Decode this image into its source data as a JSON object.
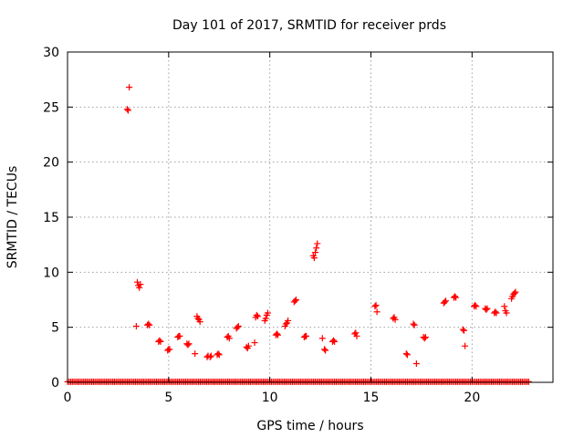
{
  "chart_data": {
    "type": "scatter",
    "title": "Day 101 of 2017, SRMTID for receiver prds",
    "xlabel": "GPS time / hours",
    "ylabel": "SRMTID / TECUs",
    "xlim": [
      0,
      24
    ],
    "ylim": [
      0,
      30
    ],
    "xticks": [
      0,
      5,
      10,
      15,
      20
    ],
    "yticks": [
      0,
      5,
      10,
      15,
      20,
      25,
      30
    ],
    "grid": true,
    "marker": "plus",
    "color": "#ff0000",
    "baseline": {
      "y": 0.05,
      "x_start": 0.0,
      "x_end": 22.8,
      "step": 0.08
    },
    "points": [
      [
        2.95,
        24.8
      ],
      [
        3.0,
        24.7
      ],
      [
        3.05,
        26.8
      ],
      [
        3.4,
        5.1
      ],
      [
        3.45,
        9.1
      ],
      [
        3.5,
        8.8
      ],
      [
        3.55,
        8.6
      ],
      [
        3.6,
        8.9
      ],
      [
        3.95,
        5.2
      ],
      [
        4.0,
        5.3
      ],
      [
        4.05,
        5.2
      ],
      [
        4.5,
        3.7
      ],
      [
        4.55,
        3.8
      ],
      [
        4.6,
        3.7
      ],
      [
        4.95,
        2.9
      ],
      [
        5.0,
        3.0
      ],
      [
        5.05,
        3.0
      ],
      [
        5.45,
        4.1
      ],
      [
        5.5,
        4.2
      ],
      [
        5.55,
        4.2
      ],
      [
        5.9,
        3.5
      ],
      [
        5.95,
        3.4
      ],
      [
        6.0,
        3.5
      ],
      [
        6.3,
        2.6
      ],
      [
        6.4,
        6.0
      ],
      [
        6.45,
        5.8
      ],
      [
        6.5,
        5.7
      ],
      [
        6.55,
        5.5
      ],
      [
        6.9,
        2.3
      ],
      [
        6.95,
        2.4
      ],
      [
        7.05,
        2.3
      ],
      [
        7.1,
        2.4
      ],
      [
        7.4,
        2.5
      ],
      [
        7.45,
        2.6
      ],
      [
        7.5,
        2.5
      ],
      [
        7.9,
        4.1
      ],
      [
        7.95,
        4.2
      ],
      [
        8.0,
        4.0
      ],
      [
        8.35,
        4.9
      ],
      [
        8.4,
        5.0
      ],
      [
        8.45,
        5.1
      ],
      [
        8.85,
        3.2
      ],
      [
        8.9,
        3.1
      ],
      [
        8.95,
        3.3
      ],
      [
        9.25,
        3.6
      ],
      [
        9.3,
        5.9
      ],
      [
        9.35,
        6.1
      ],
      [
        9.4,
        6.0
      ],
      [
        9.75,
        5.6
      ],
      [
        9.8,
        5.8
      ],
      [
        9.85,
        6.1
      ],
      [
        9.9,
        6.3
      ],
      [
        10.3,
        4.3
      ],
      [
        10.35,
        4.4
      ],
      [
        10.4,
        4.3
      ],
      [
        10.75,
        5.1
      ],
      [
        10.8,
        5.3
      ],
      [
        10.85,
        5.4
      ],
      [
        10.9,
        5.6
      ],
      [
        11.2,
        7.3
      ],
      [
        11.25,
        7.4
      ],
      [
        11.3,
        7.5
      ],
      [
        11.7,
        4.1
      ],
      [
        11.75,
        4.2
      ],
      [
        11.8,
        4.2
      ],
      [
        12.15,
        11.5
      ],
      [
        12.2,
        11.3
      ],
      [
        12.25,
        11.8
      ],
      [
        12.3,
        12.2
      ],
      [
        12.35,
        12.6
      ],
      [
        12.6,
        4.0
      ],
      [
        12.7,
        3.0
      ],
      [
        12.75,
        2.9
      ],
      [
        13.1,
        3.7
      ],
      [
        13.15,
        3.8
      ],
      [
        13.2,
        3.7
      ],
      [
        14.2,
        4.4
      ],
      [
        14.25,
        4.5
      ],
      [
        14.3,
        4.2
      ],
      [
        15.2,
        6.9
      ],
      [
        15.25,
        7.0
      ],
      [
        15.3,
        6.4
      ],
      [
        16.1,
        5.8
      ],
      [
        16.15,
        5.9
      ],
      [
        16.2,
        5.7
      ],
      [
        16.75,
        2.6
      ],
      [
        16.8,
        2.5
      ],
      [
        17.1,
        5.3
      ],
      [
        17.15,
        5.2
      ],
      [
        17.25,
        1.7
      ],
      [
        17.6,
        4.1
      ],
      [
        17.65,
        4.0
      ],
      [
        17.7,
        4.1
      ],
      [
        18.6,
        7.2
      ],
      [
        18.65,
        7.3
      ],
      [
        18.7,
        7.4
      ],
      [
        19.1,
        7.7
      ],
      [
        19.15,
        7.8
      ],
      [
        19.2,
        7.7
      ],
      [
        19.55,
        4.8
      ],
      [
        19.6,
        4.7
      ],
      [
        19.65,
        3.3
      ],
      [
        20.1,
        6.9
      ],
      [
        20.15,
        7.0
      ],
      [
        20.2,
        6.9
      ],
      [
        20.65,
        6.7
      ],
      [
        20.7,
        6.6
      ],
      [
        20.75,
        6.7
      ],
      [
        21.1,
        6.3
      ],
      [
        21.15,
        6.4
      ],
      [
        21.2,
        6.3
      ],
      [
        21.6,
        6.9
      ],
      [
        21.65,
        6.5
      ],
      [
        21.7,
        6.3
      ],
      [
        21.95,
        7.6
      ],
      [
        22.0,
        7.8
      ],
      [
        22.05,
        8.0
      ],
      [
        22.1,
        8.1
      ],
      [
        22.15,
        8.2
      ]
    ]
  }
}
